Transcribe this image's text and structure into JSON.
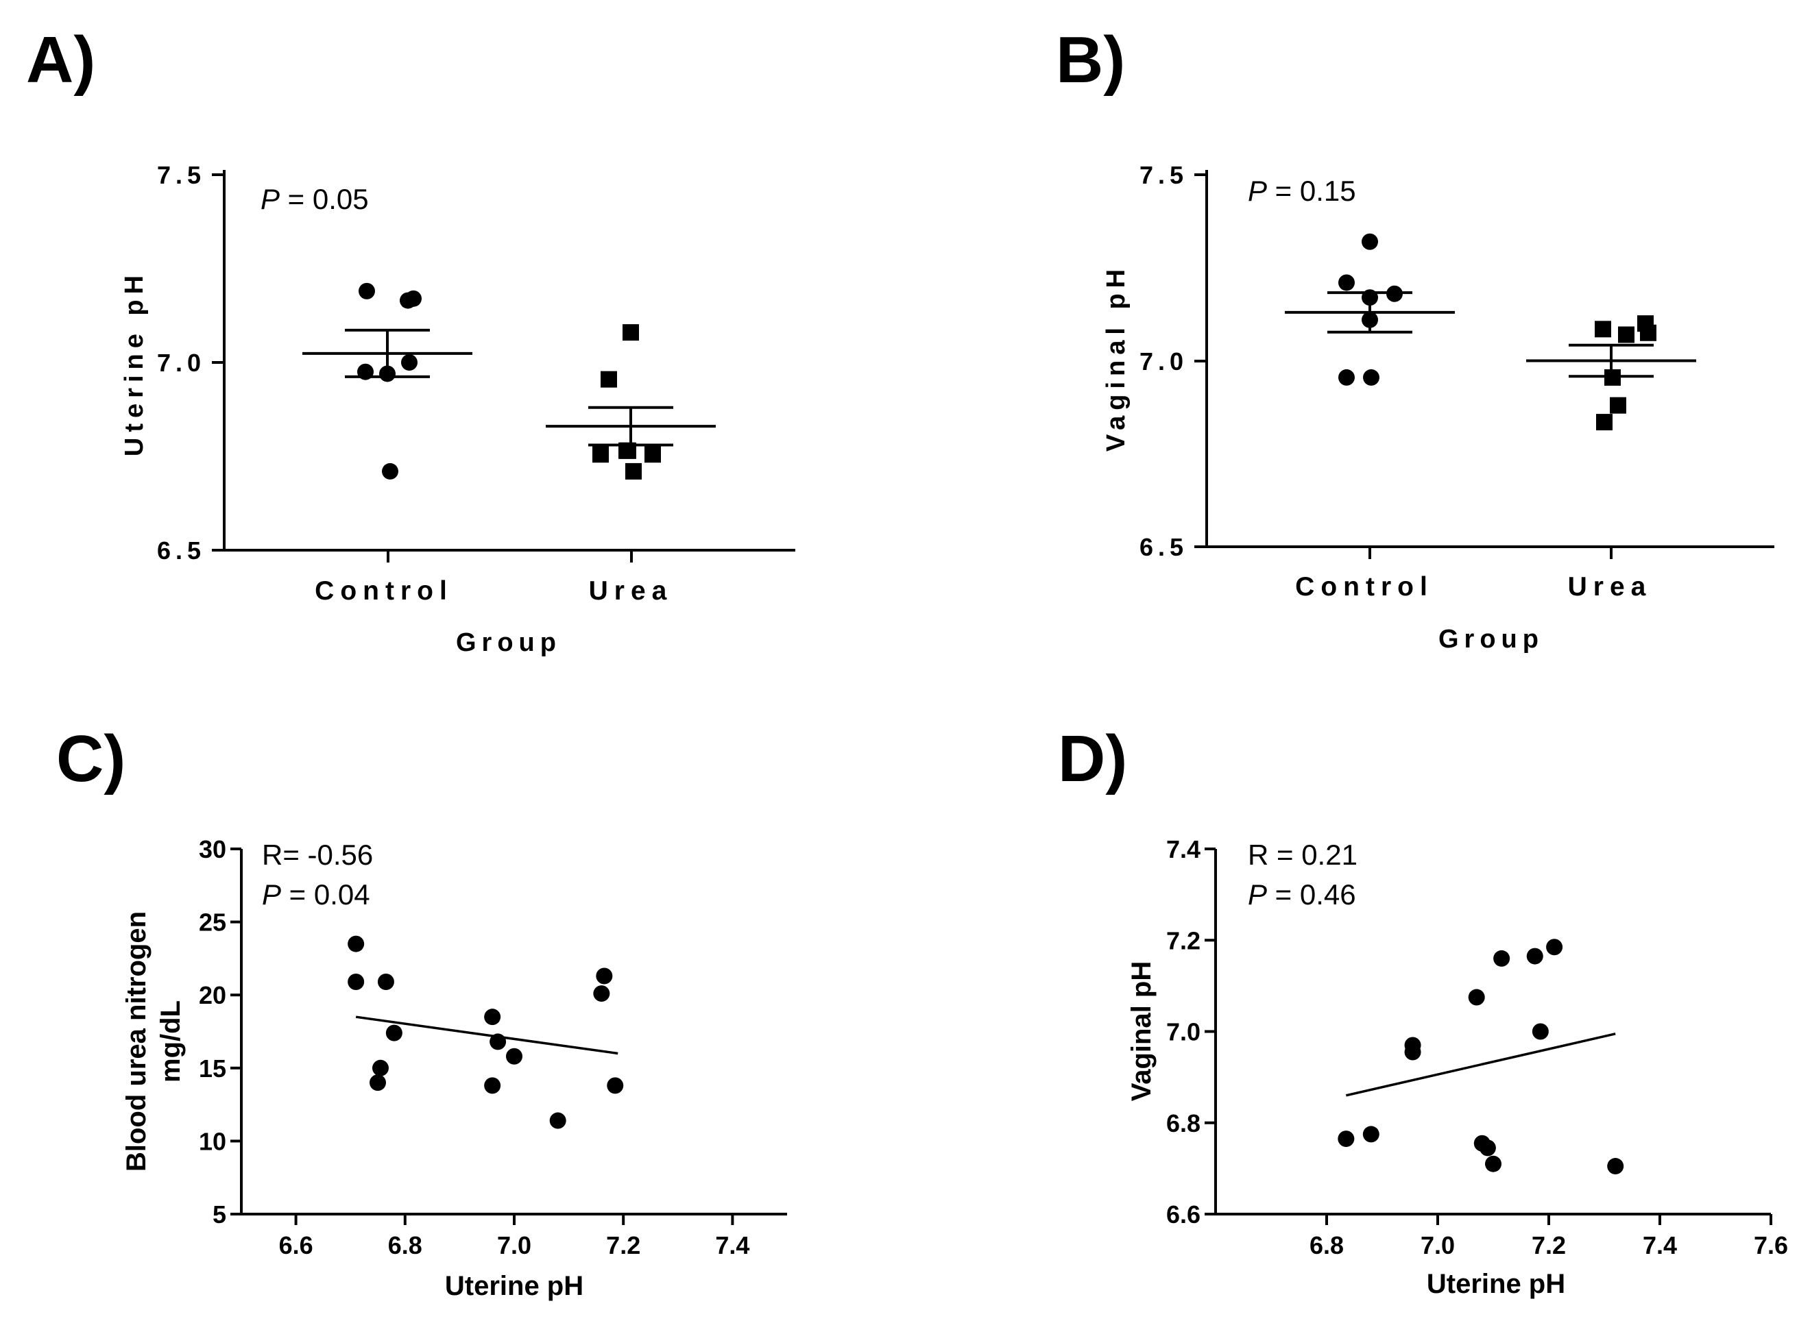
{
  "chart_data": [
    {
      "panel": "A)",
      "type": "scatter",
      "ylabel": "Uterine pH",
      "xlabel": "Group",
      "ylim": [
        6.5,
        7.5
      ],
      "yticks": [
        "6.5",
        "7.0",
        "7.5"
      ],
      "categories": [
        "Control",
        "Urea"
      ],
      "annotation_p_symbol": "P",
      "annotation_p_value": " = 0.05",
      "series": [
        {
          "name": "Control",
          "marker": "circle",
          "values": [
            7.19,
            7.165,
            7.17,
            6.975,
            6.97,
            7.0,
            6.71
          ],
          "mean": 7.024,
          "sem": 0.062
        },
        {
          "name": "Urea",
          "marker": "square",
          "values": [
            7.08,
            6.955,
            6.765,
            6.755,
            6.71,
            6.755,
            6.765
          ],
          "mean": 6.83,
          "sem": 0.05
        }
      ]
    },
    {
      "panel": "B)",
      "type": "scatter",
      "ylabel": "Vaginal pH",
      "xlabel": "Group",
      "ylim": [
        6.5,
        7.5
      ],
      "yticks": [
        "6.5",
        "7.0",
        "7.5"
      ],
      "categories": [
        "Control",
        "Urea"
      ],
      "annotation_p_symbol": "P",
      "annotation_p_value": " = 0.15",
      "series": [
        {
          "name": "Control",
          "marker": "circle",
          "values": [
            7.32,
            7.21,
            7.17,
            7.18,
            7.11,
            6.955,
            6.955
          ],
          "mean": 7.13,
          "sem": 0.053
        },
        {
          "name": "Urea",
          "marker": "square",
          "values": [
            7.085,
            7.07,
            7.075,
            7.1,
            6.955,
            6.88,
            6.835
          ],
          "mean": 7.0,
          "sem": 0.042
        }
      ]
    },
    {
      "panel": "C)",
      "type": "scatter",
      "xlabel": "Uterine pH",
      "ylabel_line1": "Blood urea nitrogen",
      "ylabel_line2": "mg/dL",
      "xlim": [
        6.5,
        7.5
      ],
      "ylim": [
        5,
        30
      ],
      "xticks": [
        "6.6",
        "6.8",
        "7.0",
        "7.2",
        "7.4"
      ],
      "yticks": [
        "5",
        "10",
        "15",
        "20",
        "25",
        "30"
      ],
      "annotation_r": "R= -0.56",
      "annotation_p_symbol": "P",
      "annotation_p_value": " = 0.04",
      "points": [
        {
          "x": 6.71,
          "y": 23.5
        },
        {
          "x": 6.71,
          "y": 20.9
        },
        {
          "x": 6.765,
          "y": 20.9
        },
        {
          "x": 6.78,
          "y": 17.4
        },
        {
          "x": 6.755,
          "y": 15.0
        },
        {
          "x": 6.75,
          "y": 14.0
        },
        {
          "x": 6.96,
          "y": 18.5
        },
        {
          "x": 6.97,
          "y": 16.8
        },
        {
          "x": 7.0,
          "y": 15.8
        },
        {
          "x": 6.96,
          "y": 13.8
        },
        {
          "x": 7.08,
          "y": 11.4
        },
        {
          "x": 7.165,
          "y": 21.3
        },
        {
          "x": 7.16,
          "y": 20.1
        },
        {
          "x": 7.185,
          "y": 13.8
        }
      ],
      "fit": {
        "x": [
          6.71,
          7.19
        ],
        "y": [
          18.5,
          16.0
        ]
      }
    },
    {
      "panel": "D)",
      "type": "scatter",
      "xlabel": "Uterine pH",
      "ylabel": "Vaginal pH",
      "xlim": [
        6.6,
        7.6
      ],
      "ylim": [
        6.6,
        7.4
      ],
      "xticks": [
        "6.8",
        "7.0",
        "7.2",
        "7.4",
        "7.6"
      ],
      "yticks": [
        "6.6",
        "6.8",
        "7.0",
        "7.2",
        "7.4"
      ],
      "annotation_r": "R = 0.21",
      "annotation_p_symbol": "P",
      "annotation_p_value": " = 0.46",
      "points": [
        {
          "x": 6.835,
          "y": 6.765
        },
        {
          "x": 6.88,
          "y": 6.775
        },
        {
          "x": 6.955,
          "y": 6.97
        },
        {
          "x": 6.955,
          "y": 6.955
        },
        {
          "x": 7.07,
          "y": 7.075
        },
        {
          "x": 7.08,
          "y": 6.755
        },
        {
          "x": 7.09,
          "y": 6.745
        },
        {
          "x": 7.1,
          "y": 6.71
        },
        {
          "x": 7.115,
          "y": 7.16
        },
        {
          "x": 7.175,
          "y": 7.165
        },
        {
          "x": 7.185,
          "y": 7.0
        },
        {
          "x": 7.21,
          "y": 7.185
        },
        {
          "x": 7.32,
          "y": 6.705
        }
      ],
      "fit": {
        "x": [
          6.835,
          7.32
        ],
        "y": [
          6.86,
          6.995
        ]
      }
    }
  ]
}
